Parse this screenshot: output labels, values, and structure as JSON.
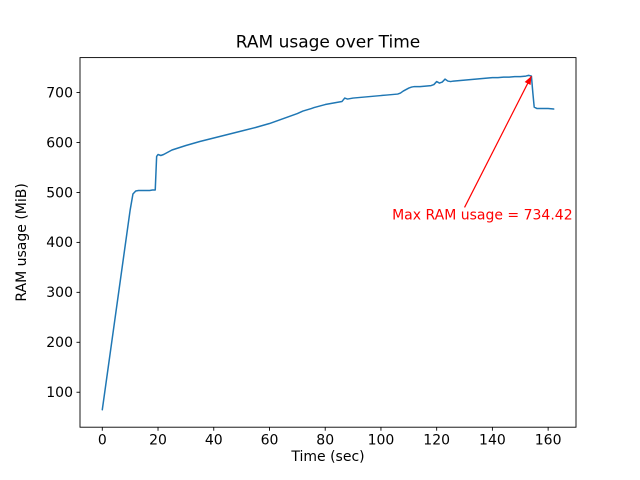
{
  "figure": {
    "background": "#ffffff"
  },
  "chart_data": {
    "type": "line",
    "title": "RAM usage over Time",
    "xlabel": "Time (sec)",
    "ylabel": "RAM usage (MiB)",
    "xlim": [
      -8,
      170
    ],
    "ylim": [
      30,
      770
    ],
    "xticks": [
      0,
      20,
      40,
      60,
      80,
      100,
      120,
      140,
      160
    ],
    "yticks": [
      100,
      200,
      300,
      400,
      500,
      600,
      700
    ],
    "grid": false,
    "legend": false,
    "line_color": "#1f77b4",
    "series": [
      {
        "name": "RAM usage",
        "x": [
          0,
          2,
          4,
          6,
          8,
          10,
          11,
          12,
          13,
          17,
          18,
          19,
          19.5,
          20,
          21,
          22,
          25,
          30,
          35,
          40,
          45,
          50,
          55,
          60,
          65,
          70,
          72,
          75,
          76,
          78,
          80,
          82,
          84,
          86,
          87,
          88,
          90,
          92,
          94,
          96,
          98,
          100,
          102,
          104,
          106,
          107,
          108,
          110,
          111,
          112,
          114,
          116,
          118,
          119,
          120,
          121,
          122,
          123,
          124,
          125,
          126,
          128,
          130,
          132,
          134,
          136,
          138,
          140,
          142,
          144,
          146,
          148,
          150,
          152,
          153,
          154,
          154.5,
          155,
          156,
          158,
          160,
          162
        ],
        "y": [
          65,
          145,
          225,
          305,
          385,
          465,
          497,
          503,
          504,
          504,
          505,
          505,
          572,
          576,
          574,
          576,
          585,
          594,
          602,
          609,
          616,
          623,
          630,
          638,
          648,
          658,
          663,
          668,
          670,
          673,
          676,
          678,
          680,
          682,
          689,
          687,
          689,
          690,
          691,
          692,
          693,
          694,
          695,
          696,
          697,
          699,
          703,
          709,
          711,
          712,
          712,
          713,
          714,
          716,
          722,
          719,
          721,
          727,
          723,
          722,
          723,
          724,
          725,
          726,
          727,
          728,
          729,
          730,
          730,
          731,
          731,
          732,
          732,
          733,
          734.42,
          733,
          700,
          671,
          668,
          668,
          668,
          667
        ]
      }
    ],
    "annotation": {
      "text": "Max RAM usage = 734.42",
      "color": "#ff0000",
      "text_xy": [
        104,
        446
      ],
      "arrow_start": [
        130,
        470
      ],
      "point_xy": [
        154,
        733
      ],
      "max_value": 734.42
    }
  }
}
